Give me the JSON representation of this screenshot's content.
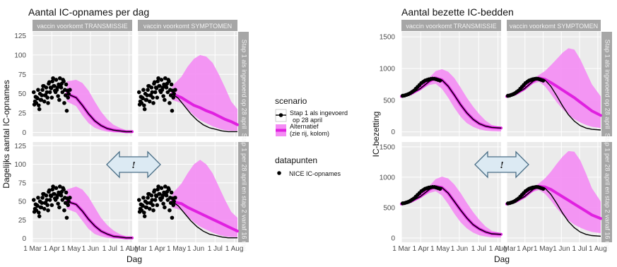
{
  "chart_data": [
    {
      "type": "line",
      "title": "Aantal IC-opnames per dag",
      "xlabel": "Dag",
      "ylabel": "Dagelijks aantal IC-opnames",
      "x_ticks": [
        "1 Mar",
        "1 Apr",
        "1 May",
        "1 Jun",
        "1 Jul",
        "1 Aug"
      ],
      "xlim": [
        0,
        160
      ],
      "ylim": [
        -5,
        130
      ],
      "y_ticks": [
        0,
        25,
        50,
        75,
        100,
        125
      ],
      "column_strips": [
        "vaccin voorkomt TRANSMISSIE",
        "vaccin voorkomt SYMPTOMEN"
      ],
      "row_strips": [
        "Stap 1 als ingevoerd op 28 april",
        "Stap 1 per 28 april en stap 2 vanaf 16 mei"
      ],
      "panels": [
        {
          "row": 0,
          "col": 0,
          "black_x": [
            55,
            70,
            80,
            90,
            100,
            110,
            120,
            130,
            140,
            150,
            160
          ],
          "black_y": [
            50,
            45,
            35,
            24,
            15,
            9,
            5,
            3,
            2,
            1,
            1
          ],
          "magenta_x": [
            55,
            70,
            80,
            90,
            100,
            110,
            120,
            130,
            140,
            150,
            160
          ],
          "magenta_y": [
            50,
            45,
            35,
            24,
            15,
            9,
            5,
            3,
            2,
            1,
            1
          ],
          "band_lower": [
            40,
            34,
            22,
            12,
            6,
            3,
            1,
            0,
            0,
            0,
            0
          ],
          "band_upper": [
            66,
            68,
            64,
            54,
            40,
            27,
            17,
            10,
            6,
            3,
            2
          ]
        },
        {
          "row": 0,
          "col": 1,
          "black_x": [
            55,
            65,
            75,
            85,
            95,
            105,
            115,
            125,
            135,
            145,
            160
          ],
          "black_y": [
            50,
            44,
            34,
            24,
            16,
            10,
            6,
            4,
            2,
            1,
            1
          ],
          "magenta_x": [
            55,
            70,
            80,
            90,
            100,
            110,
            120,
            130,
            140,
            150,
            160
          ],
          "magenta_y": [
            50,
            45,
            40,
            35,
            32,
            28,
            25,
            21,
            17,
            14,
            10
          ],
          "band_lower": [
            42,
            38,
            30,
            22,
            16,
            12,
            8,
            5,
            3,
            2,
            2
          ],
          "band_upper": [
            60,
            72,
            85,
            95,
            100,
            98,
            90,
            75,
            58,
            40,
            30
          ]
        },
        {
          "row": 1,
          "col": 0,
          "black_x": [
            55,
            70,
            80,
            90,
            100,
            110,
            120,
            130,
            140,
            150,
            160
          ],
          "black_y": [
            50,
            46,
            37,
            26,
            17,
            10,
            6,
            3,
            2,
            1,
            1
          ],
          "magenta_x": [
            55,
            70,
            80,
            90,
            100,
            110,
            120,
            130,
            140,
            150,
            160
          ],
          "magenta_y": [
            50,
            46,
            37,
            26,
            17,
            10,
            6,
            3,
            2,
            1,
            1
          ],
          "band_lower": [
            40,
            35,
            24,
            13,
            6,
            3,
            1,
            0,
            0,
            0,
            0
          ],
          "band_upper": [
            66,
            70,
            66,
            56,
            42,
            28,
            18,
            11,
            6,
            3,
            2
          ]
        },
        {
          "row": 1,
          "col": 1,
          "black_x": [
            55,
            65,
            75,
            85,
            95,
            105,
            115,
            125,
            135,
            145,
            160
          ],
          "black_y": [
            50,
            44,
            34,
            24,
            16,
            10,
            6,
            4,
            2,
            1,
            1
          ],
          "magenta_x": [
            55,
            70,
            80,
            90,
            100,
            110,
            120,
            130,
            140,
            150,
            160
          ],
          "magenta_y": [
            50,
            47,
            42,
            38,
            34,
            30,
            26,
            22,
            18,
            14,
            10
          ],
          "band_lower": [
            42,
            38,
            30,
            22,
            16,
            12,
            8,
            5,
            3,
            2,
            2
          ],
          "band_upper": [
            60,
            74,
            88,
            100,
            106,
            100,
            88,
            70,
            52,
            36,
            28
          ]
        }
      ],
      "points_x": [
        2,
        4,
        6,
        8,
        10,
        12,
        14,
        16,
        18,
        20,
        22,
        24,
        26,
        28,
        30,
        32,
        34,
        36,
        38,
        40,
        42,
        44,
        46,
        48,
        50,
        52,
        54,
        56,
        58,
        60,
        3,
        7,
        11,
        15,
        19,
        23,
        27,
        31,
        35,
        39,
        43,
        47,
        51,
        55,
        5,
        9,
        13,
        17,
        21,
        25,
        29,
        33,
        37,
        41,
        45,
        49,
        53,
        57
      ],
      "points_y": [
        52,
        40,
        38,
        44,
        35,
        50,
        42,
        55,
        60,
        48,
        58,
        45,
        63,
        52,
        57,
        66,
        60,
        54,
        68,
        58,
        62,
        70,
        58,
        52,
        66,
        55,
        62,
        54,
        50,
        55,
        36,
        45,
        30,
        48,
        40,
        52,
        65,
        45,
        60,
        55,
        42,
        63,
        38,
        28,
        46,
        55,
        42,
        60,
        48,
        38,
        58,
        70,
        52,
        47,
        60,
        68,
        48,
        45
      ]
    },
    {
      "type": "line",
      "title": "Aantal bezette IC-bedden",
      "xlabel": "Dag",
      "ylabel": "IC-bezetting",
      "x_ticks": [
        "1 Mar",
        "1 Apr",
        "1 May",
        "1 Jun",
        "1 Jul",
        "1 Aug"
      ],
      "xlim": [
        0,
        160
      ],
      "ylim": [
        -70,
        1580
      ],
      "y_ticks": [
        0,
        500,
        1000,
        1500
      ],
      "column_strips": [
        "vaccin voorkomt TRANSMISSIE",
        "vaccin voorkomt SYMPTOMEN"
      ],
      "row_strips": [
        "Stap 1 als ingevoerd op 28 april",
        "Stap 1 per 28 april en stap 2 vanaf 16 mei"
      ],
      "panels": [
        {
          "row": 0,
          "col": 0,
          "black_x": [
            0,
            15,
            30,
            45,
            55,
            65,
            75,
            85,
            95,
            105,
            115,
            125,
            135,
            145,
            160
          ],
          "black_y": [
            560,
            600,
            680,
            800,
            850,
            820,
            720,
            580,
            430,
            300,
            200,
            130,
            90,
            70,
            60
          ],
          "magenta_x": [
            0,
            15,
            30,
            45,
            55,
            65,
            75,
            85,
            95,
            105,
            115,
            125,
            135,
            145,
            160
          ],
          "magenta_y": [
            560,
            600,
            680,
            800,
            850,
            820,
            720,
            580,
            430,
            300,
            200,
            130,
            90,
            70,
            60
          ],
          "band_lower": [
            560,
            600,
            660,
            740,
            760,
            680,
            540,
            380,
            240,
            140,
            80,
            40,
            20,
            10,
            5
          ],
          "band_upper": [
            560,
            600,
            700,
            860,
            960,
            990,
            950,
            850,
            700,
            540,
            400,
            280,
            180,
            110,
            70
          ]
        },
        {
          "row": 0,
          "col": 1,
          "black_x": [
            0,
            15,
            30,
            45,
            55,
            65,
            75,
            85,
            95,
            105,
            115,
            125,
            135,
            145,
            160
          ],
          "black_y": [
            560,
            600,
            680,
            800,
            850,
            820,
            720,
            570,
            410,
            270,
            170,
            100,
            60,
            40,
            30
          ],
          "magenta_x": [
            0,
            15,
            30,
            45,
            55,
            65,
            75,
            85,
            95,
            105,
            115,
            125,
            135,
            145,
            160
          ],
          "magenta_y": [
            560,
            600,
            680,
            800,
            850,
            830,
            780,
            720,
            660,
            600,
            540,
            470,
            400,
            330,
            260
          ],
          "band_lower": [
            560,
            600,
            670,
            760,
            790,
            720,
            600,
            470,
            360,
            270,
            200,
            150,
            110,
            80,
            60
          ],
          "band_upper": [
            560,
            600,
            700,
            840,
            900,
            960,
            1050,
            1150,
            1250,
            1320,
            1300,
            1150,
            950,
            750,
            560
          ]
        },
        {
          "row": 1,
          "col": 0,
          "black_x": [
            0,
            15,
            30,
            45,
            55,
            65,
            75,
            85,
            95,
            105,
            115,
            125,
            135,
            145,
            160
          ],
          "black_y": [
            560,
            600,
            680,
            800,
            850,
            830,
            740,
            600,
            460,
            330,
            220,
            150,
            100,
            70,
            60
          ],
          "magenta_x": [
            0,
            15,
            30,
            45,
            55,
            65,
            75,
            85,
            95,
            105,
            115,
            125,
            135,
            145,
            160
          ],
          "magenta_y": [
            560,
            600,
            680,
            800,
            850,
            830,
            740,
            600,
            460,
            330,
            220,
            150,
            100,
            70,
            60
          ],
          "band_lower": [
            560,
            600,
            660,
            740,
            770,
            700,
            560,
            400,
            260,
            160,
            90,
            45,
            25,
            10,
            5
          ],
          "band_upper": [
            560,
            600,
            700,
            860,
            970,
            1010,
            980,
            880,
            740,
            580,
            430,
            300,
            190,
            120,
            80
          ]
        },
        {
          "row": 1,
          "col": 1,
          "black_x": [
            0,
            15,
            30,
            45,
            55,
            65,
            75,
            85,
            95,
            105,
            115,
            125,
            135,
            145,
            160
          ],
          "black_y": [
            560,
            600,
            680,
            800,
            850,
            820,
            720,
            570,
            410,
            270,
            170,
            100,
            60,
            40,
            30
          ],
          "magenta_x": [
            0,
            15,
            30,
            45,
            55,
            65,
            75,
            85,
            95,
            105,
            115,
            125,
            135,
            145,
            160
          ],
          "magenta_y": [
            560,
            600,
            680,
            800,
            850,
            840,
            800,
            740,
            680,
            620,
            560,
            500,
            440,
            380,
            320
          ],
          "band_lower": [
            560,
            600,
            670,
            760,
            790,
            730,
            620,
            490,
            380,
            290,
            220,
            170,
            130,
            100,
            80
          ],
          "band_upper": [
            560,
            600,
            700,
            840,
            900,
            980,
            1090,
            1220,
            1340,
            1430,
            1420,
            1280,
            1060,
            820,
            600
          ]
        }
      ],
      "points_x": [
        2,
        5,
        8,
        11,
        14,
        17,
        20,
        23,
        26,
        29,
        32,
        35,
        38,
        41,
        44,
        47,
        50,
        53,
        56,
        59,
        62
      ],
      "points_y": [
        570,
        575,
        585,
        595,
        610,
        630,
        650,
        680,
        710,
        740,
        770,
        790,
        810,
        820,
        830,
        835,
        840,
        838,
        830,
        820,
        810
      ]
    }
  ],
  "legend": {
    "scenario_title": "scenario",
    "items": [
      {
        "label_line1": "Stap 1 als ingevoerd",
        "label_line2": "op 28 april",
        "color": "#000000"
      },
      {
        "label_line1": "Alternatief",
        "label_line2": "(zie rij, kolom)",
        "color": "#e020e0"
      }
    ],
    "datapoints_title": "datapunten",
    "datapoints_item": "NICE IC-opnames"
  },
  "annotations": {
    "left_arrow_text": "!",
    "right_arrow_text": "!"
  },
  "colors": {
    "band": "#f48cf4",
    "magenta": "#e020e0",
    "black": "#000000",
    "strip": "#a6a6a6",
    "panel": "#ebebeb"
  }
}
